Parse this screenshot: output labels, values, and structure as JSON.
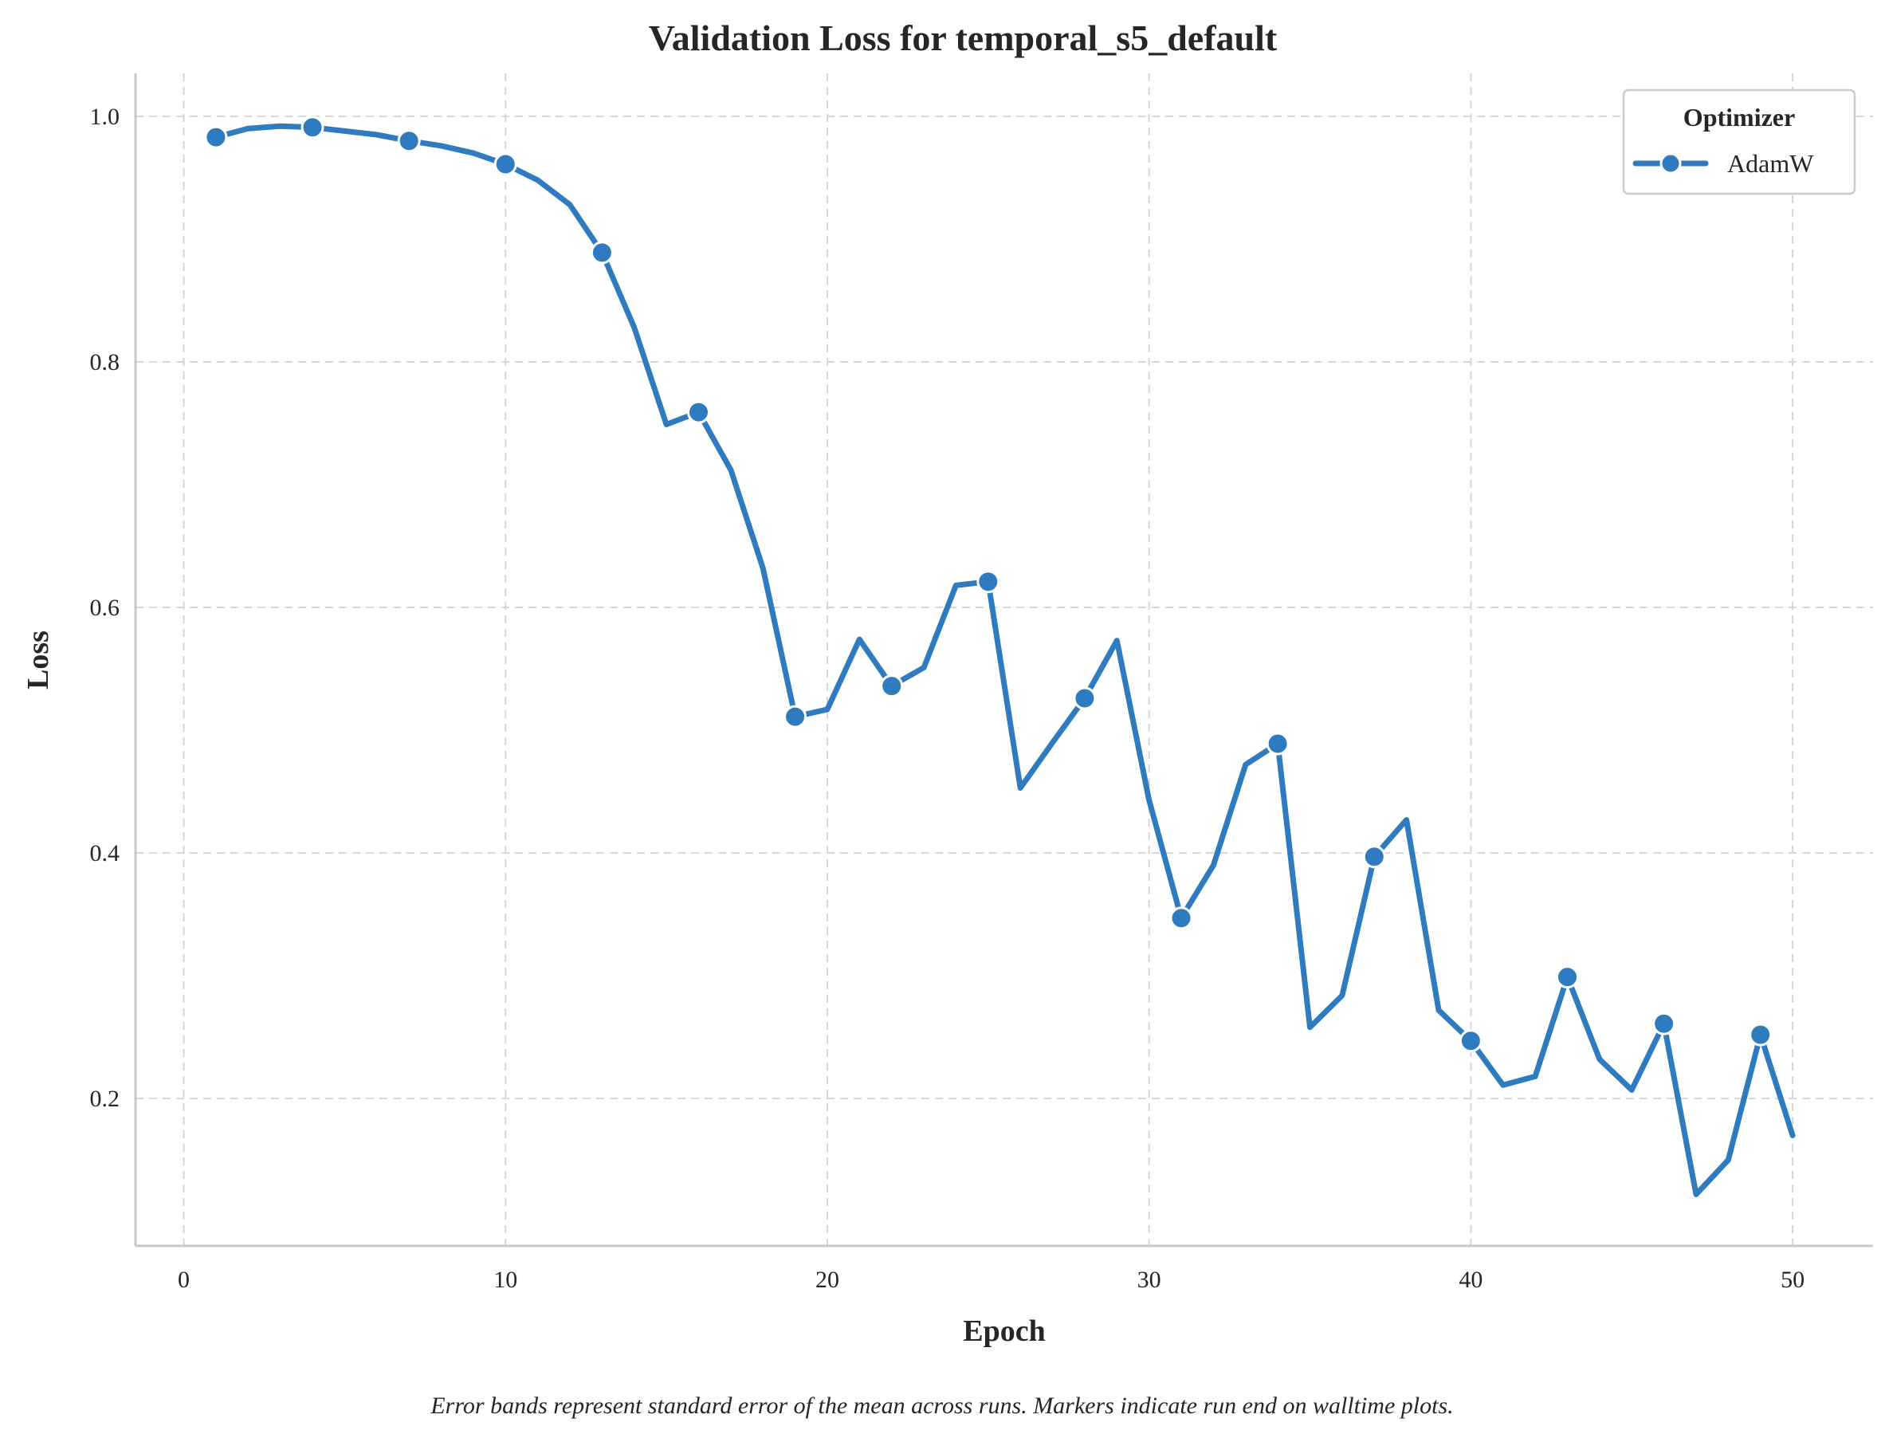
{
  "chart_data": {
    "type": "line",
    "title": "Validation Loss for temporal_s5_default",
    "xlabel": "Epoch",
    "ylabel": "Loss",
    "xlim": [
      -1.5,
      52.5
    ],
    "ylim": [
      0.08,
      1.035
    ],
    "x_ticks": [
      0,
      10,
      20,
      30,
      40,
      50
    ],
    "x_tick_labels": [
      "0",
      "10",
      "20",
      "30",
      "40",
      "50"
    ],
    "y_ticks": [
      0.2,
      0.4,
      0.6,
      0.8,
      1.0
    ],
    "y_tick_labels": [
      "0.2",
      "0.4",
      "0.6",
      "0.8",
      "1.0"
    ],
    "grid": true,
    "legend": {
      "title": "Optimizer",
      "position": "top-right"
    },
    "caption": "Error bands represent standard error of the mean across runs. Markers indicate run end on walltime plots.",
    "series": [
      {
        "name": "AdamW",
        "color": "#2f7bbf",
        "marker": "circle",
        "marker_every": 3,
        "marker_start": 1,
        "x": [
          1,
          2,
          3,
          4,
          5,
          6,
          7,
          8,
          9,
          10,
          11,
          12,
          13,
          14,
          15,
          16,
          17,
          18,
          19,
          20,
          21,
          22,
          23,
          24,
          25,
          26,
          27,
          28,
          29,
          30,
          31,
          32,
          33,
          34,
          35,
          36,
          37,
          38,
          39,
          40,
          41,
          42,
          43,
          44,
          45,
          46,
          47,
          48,
          49,
          50
        ],
        "y": [
          0.983,
          0.99,
          0.992,
          0.991,
          0.988,
          0.985,
          0.98,
          0.976,
          0.97,
          0.961,
          0.948,
          0.928,
          0.889,
          0.828,
          0.749,
          0.759,
          0.712,
          0.632,
          0.511,
          0.517,
          0.574,
          0.536,
          0.551,
          0.618,
          0.621,
          0.453,
          0.49,
          0.526,
          0.573,
          0.443,
          0.347,
          0.39,
          0.472,
          0.489,
          0.258,
          0.284,
          0.397,
          0.427,
          0.272,
          0.247,
          0.211,
          0.218,
          0.299,
          0.232,
          0.207,
          0.261,
          0.122,
          0.15,
          0.252,
          0.17
        ]
      }
    ]
  }
}
